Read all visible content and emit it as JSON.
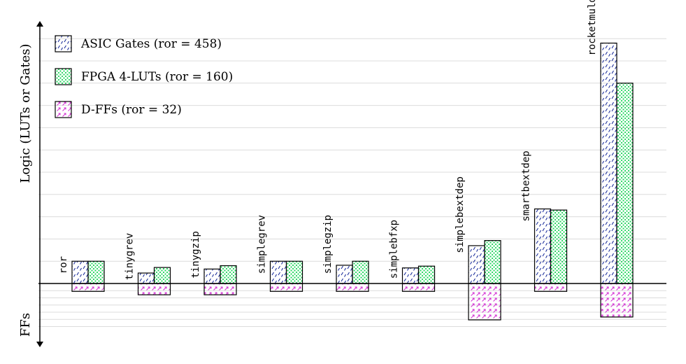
{
  "chart_data": {
    "type": "bar",
    "ylabel_top": "Logic (LUTs or Gates)",
    "ylabel_bottom": "FFs",
    "categories": [
      "ror",
      "tinygrev",
      "tinygzip",
      "simplegrev",
      "simplegzip",
      "simplebfxp",
      "simplebextdep",
      "smartbextdep",
      "rocketmuldiv"
    ],
    "logic_ylim": [
      0,
      11
    ],
    "ff_ylim": [
      0,
      2.4
    ],
    "series": [
      {
        "name": "ASIC Gates (ror = 458)",
        "group": "logic",
        "pattern": "dashes",
        "color": "#1a2d9a",
        "values": [
          1.0,
          0.47,
          0.65,
          1.0,
          0.82,
          0.7,
          1.7,
          3.35,
          10.8
        ]
      },
      {
        "name": "FPGA 4-LUTs (ror = 160)",
        "group": "logic",
        "pattern": "dots",
        "color": "#1fd65a",
        "values": [
          1.0,
          0.72,
          0.8,
          1.0,
          1.0,
          0.78,
          1.93,
          3.3,
          9.0
        ]
      },
      {
        "name": "D-FFs (ror = 32)",
        "group": "ff",
        "pattern": "arrows",
        "color": "#d22ed2",
        "values": [
          0.44,
          0.63,
          0.63,
          0.44,
          0.44,
          0.44,
          2.03,
          0.44,
          1.87
        ]
      }
    ],
    "grid": true,
    "legend_position": "top-left"
  }
}
